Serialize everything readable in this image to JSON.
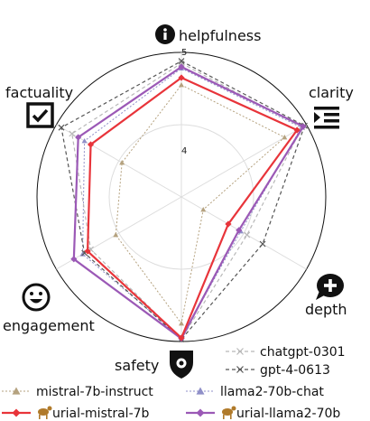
{
  "chart_data": {
    "type": "radar",
    "axes": [
      "helpfulness",
      "clarity",
      "depth",
      "safety",
      "engagement",
      "factuality"
    ],
    "range": [
      3,
      5
    ],
    "tick_labels": [
      "4",
      "5"
    ],
    "grid": true,
    "series": [
      {
        "name": "mistral-7b-instruct",
        "color": "#b5a27f",
        "values": [
          4.55,
          4.65,
          3.35,
          4.75,
          4.05,
          3.95
        ]
      },
      {
        "name": "llama2-70b-chat",
        "color": "#8f8fc8",
        "values": [
          4.78,
          4.92,
          3.95,
          4.95,
          4.58,
          4.55
        ]
      },
      {
        "name": "urial-mistral-7b",
        "color": "#e8343a",
        "values": [
          4.65,
          4.85,
          3.75,
          4.95,
          4.5,
          4.45
        ]
      },
      {
        "name": "urial-llama2-70b",
        "color": "#9b59b6",
        "values": [
          4.8,
          4.95,
          3.92,
          4.96,
          4.72,
          4.65
        ]
      },
      {
        "name": "chatgpt-0301",
        "color": "#b8b8b8",
        "values": [
          4.85,
          4.93,
          4.05,
          4.96,
          4.45,
          4.75
        ]
      },
      {
        "name": "gpt-4-0613",
        "color": "#555555",
        "values": [
          4.88,
          4.97,
          4.3,
          4.97,
          4.55,
          4.92
        ]
      }
    ]
  },
  "icons": {
    "helpfulness": "info-icon",
    "clarity": "indent-icon",
    "depth": "speech-bubble-plus-icon",
    "safety": "shield-icon",
    "engagement": "smile-icon",
    "factuality": "checkbox-icon"
  }
}
